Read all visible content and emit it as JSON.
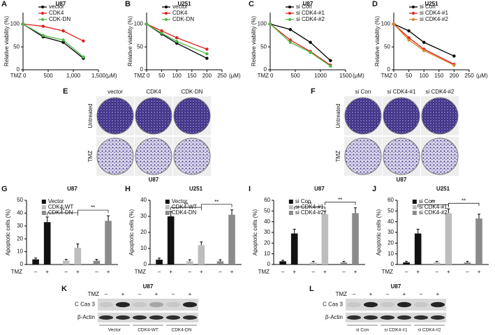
{
  "chart_data": [
    {
      "type": "line",
      "panel": "A",
      "title": "U87",
      "y_label": "Relative viability (%)",
      "x_prefix": "TMZ",
      "x_unit": "(μM)",
      "x": [
        0,
        400,
        800,
        1200
      ],
      "xlim": [
        0,
        1500
      ],
      "xticks": [
        0,
        500,
        {
          "value": 1000,
          "label": "1,000"
        },
        {
          "value": 1500,
          "label": "1,500"
        }
      ],
      "ylim": [
        0,
        125
      ],
      "yticks": [
        0,
        50,
        100
      ],
      "series": [
        {
          "name": "vector",
          "color": "#000000",
          "values": [
            100,
            72,
            60,
            25
          ]
        },
        {
          "name": "CDK4",
          "color": "#e0201b",
          "values": [
            100,
            95,
            85,
            63
          ]
        },
        {
          "name": "CDK-DN",
          "color": "#4db848",
          "values": [
            100,
            75,
            65,
            28
          ]
        }
      ]
    },
    {
      "type": "line",
      "panel": "B",
      "title": "U251",
      "y_label": "Relative viability (%)",
      "x_prefix": "TMZ",
      "x_unit": "(μM)",
      "x": [
        0,
        50,
        100,
        200
      ],
      "xlim": [
        0,
        250
      ],
      "xticks": [
        0,
        50,
        100,
        150,
        200,
        250
      ],
      "ylim": [
        0,
        125
      ],
      "yticks": [
        0,
        50,
        100
      ],
      "series": [
        {
          "name": "vector",
          "color": "#000000",
          "values": [
            100,
            78,
            58,
            25
          ]
        },
        {
          "name": "CDK4",
          "color": "#e0201b",
          "values": [
            100,
            85,
            70,
            45
          ]
        },
        {
          "name": "CDK-DN",
          "color": "#4db848",
          "values": [
            100,
            80,
            62,
            35
          ]
        }
      ]
    },
    {
      "type": "line",
      "panel": "C",
      "title": "U87",
      "y_label": "Relative viability (%)",
      "x_prefix": "TMZ",
      "x_unit": "(μM)",
      "x": [
        0,
        400,
        800,
        1200
      ],
      "xlim": [
        0,
        1500
      ],
      "xticks": [
        0,
        500,
        1000,
        1500
      ],
      "ylim": [
        0,
        125
      ],
      "yticks": [
        0,
        50,
        100
      ],
      "series": [
        {
          "name": "si Con",
          "color": "#000000",
          "values": [
            100,
            88,
            60,
            20
          ]
        },
        {
          "name": "si CDK4-#1",
          "color": "#e0201b",
          "values": [
            100,
            65,
            40,
            10
          ]
        },
        {
          "name": "si CDK4-#2",
          "color": "#4db848",
          "values": [
            100,
            60,
            38,
            8
          ]
        }
      ]
    },
    {
      "type": "line",
      "panel": "D",
      "title": "U251",
      "y_label": "Relative viability (%)",
      "x_prefix": "TMZ",
      "x_unit": "(μM)",
      "x": [
        0,
        50,
        100,
        200
      ],
      "xlim": [
        0,
        250
      ],
      "xticks": [
        0,
        50,
        100,
        150,
        200,
        250
      ],
      "ylim": [
        0,
        125
      ],
      "yticks": [
        0,
        50,
        100
      ],
      "series": [
        {
          "name": "si Con",
          "color": "#000000",
          "values": [
            100,
            85,
            60,
            30
          ]
        },
        {
          "name": "si CDK4-#1",
          "color": "#e0201b",
          "values": [
            100,
            70,
            45,
            12
          ]
        },
        {
          "name": "si CDK4-#2",
          "color": "#d9822b",
          "values": [
            100,
            65,
            42,
            10
          ]
        }
      ]
    },
    {
      "type": "bar",
      "panel": "G",
      "title": "U87",
      "y_label": "Apoptotic cells (%)",
      "x_label": "TMZ",
      "categories": [
        "–",
        "+"
      ],
      "ylim": [
        0,
        50
      ],
      "yticks": [
        0,
        10,
        20,
        30,
        40,
        50
      ],
      "annotations": [
        "**",
        "**"
      ],
      "series": [
        {
          "name": "Vector",
          "color": "#111111",
          "values": [
            4,
            33
          ],
          "errors": [
            1,
            4
          ]
        },
        {
          "name": "CDK4-WT",
          "color": "#bdbdbd",
          "values": [
            3,
            13
          ],
          "errors": [
            1,
            3
          ]
        },
        {
          "name": "CDK4-DN",
          "color": "#8a8a8a",
          "values": [
            3,
            34
          ],
          "errors": [
            1,
            4
          ]
        }
      ]
    },
    {
      "type": "bar",
      "panel": "H",
      "title": "U251",
      "y_label": "Apoptotic cells (%)",
      "x_label": "TMZ",
      "categories": [
        "–",
        "+"
      ],
      "ylim": [
        0,
        40
      ],
      "yticks": [
        0,
        10,
        20,
        30,
        40
      ],
      "annotations": [
        "**",
        "**"
      ],
      "series": [
        {
          "name": "Vector",
          "color": "#111111",
          "values": [
            3,
            30
          ],
          "errors": [
            1,
            3
          ]
        },
        {
          "name": "CDK4-WT",
          "color": "#bdbdbd",
          "values": [
            2,
            12
          ],
          "errors": [
            1,
            2
          ]
        },
        {
          "name": "CDK4-DN",
          "color": "#8a8a8a",
          "values": [
            2,
            31
          ],
          "errors": [
            1,
            3
          ]
        }
      ]
    },
    {
      "type": "bar",
      "panel": "I",
      "title": "U87",
      "y_label": "Apoptotic cells (%)",
      "x_label": "TMZ",
      "categories": [
        "–",
        "+"
      ],
      "ylim": [
        0,
        60
      ],
      "yticks": [
        0,
        10,
        20,
        30,
        40,
        50,
        60
      ],
      "annotations": [
        "**",
        "**"
      ],
      "series": [
        {
          "name": "si Con",
          "color": "#111111",
          "values": [
            3,
            29
          ],
          "errors": [
            1,
            4
          ]
        },
        {
          "name": "si CDK4-#1",
          "color": "#bdbdbd",
          "values": [
            2,
            47
          ],
          "errors": [
            1,
            3
          ]
        },
        {
          "name": "si CDK4-#2",
          "color": "#8a8a8a",
          "values": [
            2,
            48
          ],
          "errors": [
            1,
            5
          ]
        }
      ]
    },
    {
      "type": "bar",
      "panel": "J",
      "title": "U251",
      "y_label": "Apoptotic cells (%)",
      "x_label": "TMZ",
      "categories": [
        "–",
        "+"
      ],
      "ylim": [
        0,
        60
      ],
      "yticks": [
        0,
        10,
        20,
        30,
        40,
        50,
        60
      ],
      "annotations": [
        "**",
        "**"
      ],
      "series": [
        {
          "name": "si Con",
          "color": "#111111",
          "values": [
            2,
            29
          ],
          "errors": [
            1,
            4
          ]
        },
        {
          "name": "si CDK4-#1",
          "color": "#bdbdbd",
          "values": [
            2,
            48
          ],
          "errors": [
            1,
            4
          ]
        },
        {
          "name": "si CDK4-#2",
          "color": "#8a8a8a",
          "values": [
            2,
            43
          ],
          "errors": [
            1,
            4
          ]
        }
      ]
    }
  ],
  "images": [
    {
      "panel": "E",
      "columns": [
        "vector",
        "CDK4",
        "CDK-DN"
      ],
      "rows": [
        "Untreated",
        "TMZ"
      ],
      "caption": "U87"
    },
    {
      "panel": "F",
      "columns": [
        "si Con",
        "si CDK4-#1",
        "si CDK4-#2"
      ],
      "rows": [
        "Untreated",
        "TMZ"
      ],
      "caption": "U87"
    }
  ],
  "blots": [
    {
      "panel": "K",
      "title": "U87",
      "treatment": "TMZ",
      "lanes": [
        "–",
        "+",
        "–",
        "+",
        "–",
        "+"
      ],
      "rows": [
        "C Cas 3",
        "β-Actin"
      ],
      "groups": [
        "Vector",
        "CDK4-WT",
        "CDK4-DN"
      ]
    },
    {
      "panel": "L",
      "title": "U87",
      "treatment": "TMZ",
      "lanes": [
        "–",
        "+",
        "–",
        "+",
        "–",
        "+"
      ],
      "rows": [
        "C Cas 3",
        "β-Actin"
      ],
      "groups": [
        "si Con",
        "si CDK4-#1",
        "si CDK4-#2"
      ]
    }
  ]
}
